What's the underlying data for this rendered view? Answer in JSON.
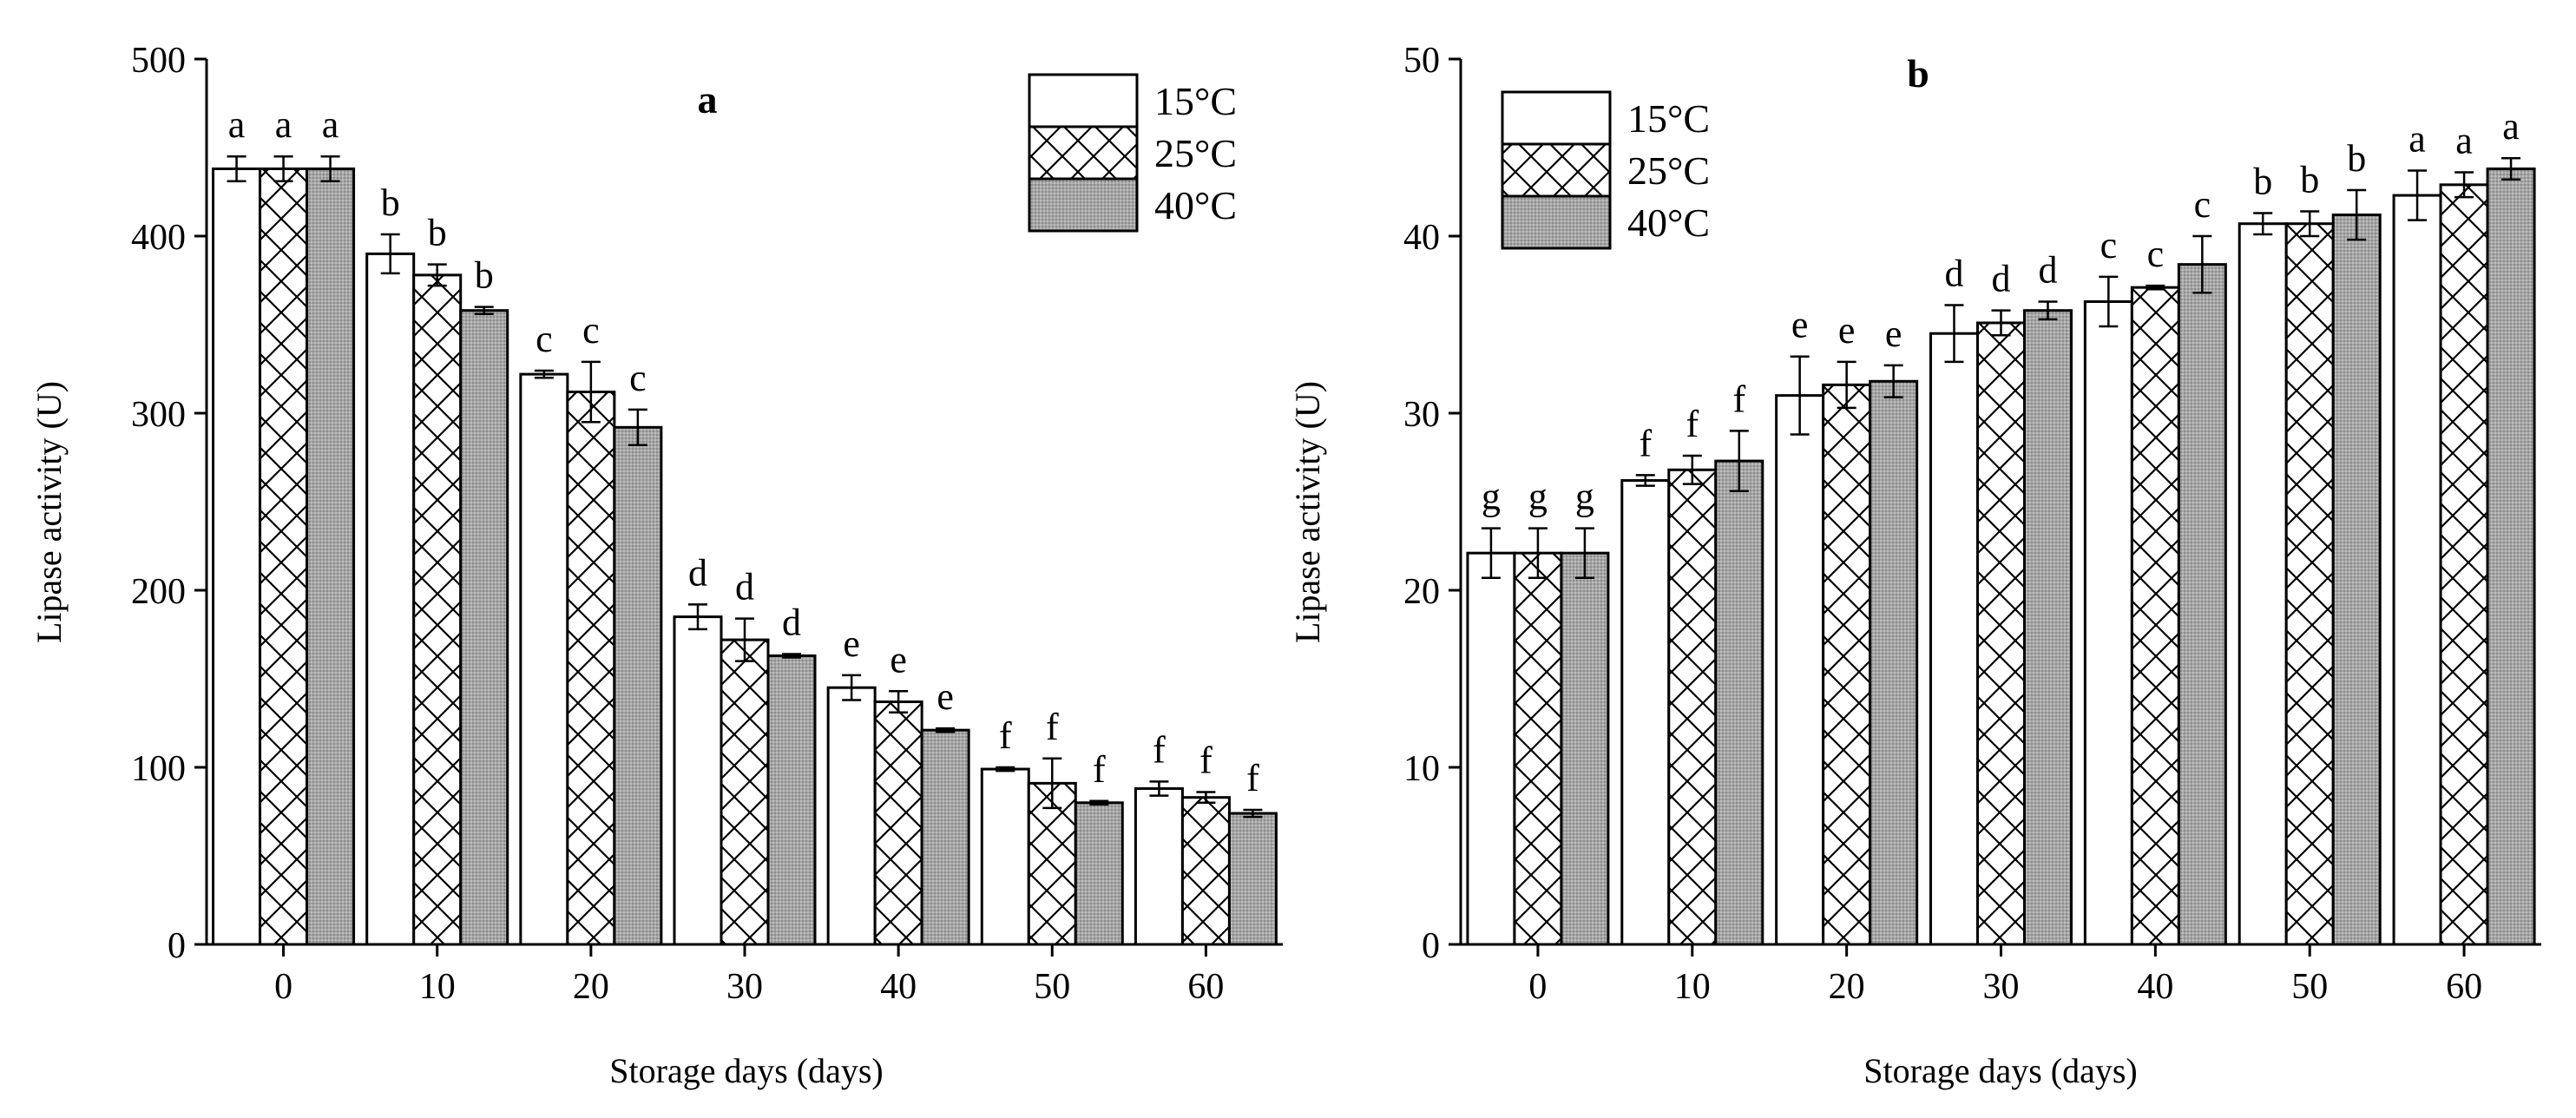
{
  "chart_data": [
    {
      "type": "bar",
      "panel_label": "a",
      "categories": [
        "0",
        "10",
        "20",
        "30",
        "40",
        "50",
        "60"
      ],
      "xlabel": "Storage days (days)",
      "ylabel": "Lipase activity (U)",
      "ylim": [
        0,
        500
      ],
      "yticks": [
        "0",
        "100",
        "200",
        "300",
        "400",
        "500"
      ],
      "legend_position": "top-right",
      "series": [
        {
          "name": "15°C",
          "pattern": "none",
          "values": [
            438,
            390,
            322,
            185,
            145,
            99,
            88
          ],
          "errors": [
            7,
            11,
            2,
            7,
            7,
            1,
            4
          ],
          "letters": [
            "a",
            "b",
            "c",
            "d",
            "e",
            "f",
            "f"
          ]
        },
        {
          "name": "25°C",
          "pattern": "crosshatch",
          "values": [
            438,
            378,
            312,
            172,
            137,
            91,
            83
          ],
          "errors": [
            7,
            6,
            17,
            12,
            6,
            14,
            3
          ],
          "letters": [
            "a",
            "b",
            "c",
            "d",
            "e",
            "f",
            "f"
          ]
        },
        {
          "name": "40°C",
          "pattern": "gray",
          "values": [
            438,
            358,
            292,
            163,
            121,
            80,
            74
          ],
          "errors": [
            7,
            2,
            10,
            1,
            1,
            1,
            2
          ],
          "letters": [
            "a",
            "b",
            "c",
            "d",
            "e",
            "f",
            "f"
          ]
        }
      ]
    },
    {
      "type": "bar",
      "panel_label": "b",
      "categories": [
        "0",
        "10",
        "20",
        "30",
        "40",
        "50",
        "60"
      ],
      "xlabel": "Storage days (days)",
      "ylabel": "Lipase activity (U)",
      "ylim": [
        0,
        50
      ],
      "yticks": [
        "0",
        "10",
        "20",
        "30",
        "40",
        "50"
      ],
      "legend_position": "top-left",
      "series": [
        {
          "name": "15°C",
          "pattern": "none",
          "values": [
            22.1,
            26.2,
            31.0,
            34.5,
            36.3,
            40.7,
            42.3
          ],
          "errors": [
            1.4,
            0.3,
            2.2,
            1.6,
            1.4,
            0.6,
            1.4
          ],
          "letters": [
            "g",
            "f",
            "e",
            "d",
            "c",
            "b",
            "a"
          ]
        },
        {
          "name": "25°C",
          "pattern": "crosshatch",
          "values": [
            22.1,
            26.8,
            31.6,
            35.1,
            37.1,
            40.7,
            42.9
          ],
          "errors": [
            1.4,
            0.8,
            1.3,
            0.7,
            0.1,
            0.7,
            0.7
          ],
          "letters": [
            "g",
            "f",
            "e",
            "d",
            "c",
            "b",
            "a"
          ]
        },
        {
          "name": "40°C",
          "pattern": "gray",
          "values": [
            22.1,
            27.3,
            31.8,
            35.8,
            38.4,
            41.2,
            43.8
          ],
          "errors": [
            1.4,
            1.7,
            0.9,
            0.5,
            1.6,
            1.4,
            0.6
          ],
          "letters": [
            "g",
            "f",
            "e",
            "d",
            "c",
            "b",
            "a"
          ]
        }
      ]
    }
  ]
}
